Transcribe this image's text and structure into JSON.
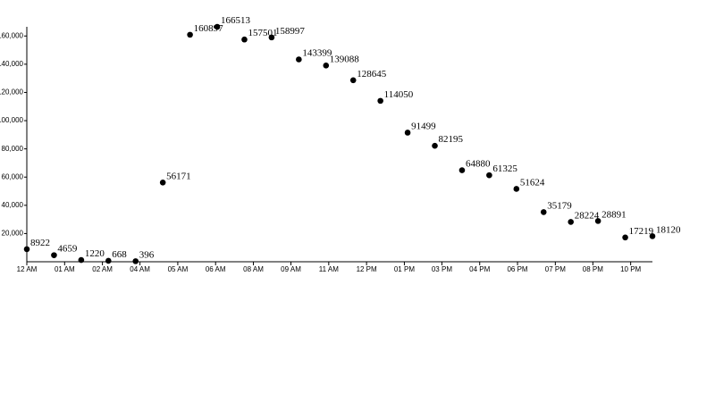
{
  "chart_data": {
    "type": "scatter",
    "x": [
      0,
      1,
      2,
      3,
      4,
      5,
      6,
      7,
      8,
      9,
      10,
      11,
      12,
      13,
      14,
      15,
      16,
      17,
      18,
      19,
      20,
      21,
      22,
      23
    ],
    "values": [
      8922,
      4659,
      1220,
      668,
      396,
      56171,
      160897,
      166513,
      157501,
      158997,
      143399,
      139088,
      128645,
      114050,
      91499,
      82195,
      64880,
      61325,
      51624,
      35179,
      28224,
      28891,
      17219,
      18120
    ],
    "color": "#000000",
    "xlim": [
      0,
      23
    ],
    "xticks": [
      {
        "value": 0,
        "label": "12 AM"
      },
      {
        "value": 1.39,
        "label": "01 AM"
      },
      {
        "value": 2.78,
        "label": "02 AM"
      },
      {
        "value": 4.16,
        "label": "04 AM"
      },
      {
        "value": 5.55,
        "label": "05 AM"
      },
      {
        "value": 6.94,
        "label": "06 AM"
      },
      {
        "value": 8.33,
        "label": "08 AM"
      },
      {
        "value": 9.71,
        "label": "09 AM"
      },
      {
        "value": 11.1,
        "label": "11 AM"
      },
      {
        "value": 12.49,
        "label": "12 PM"
      },
      {
        "value": 13.88,
        "label": "01 PM"
      },
      {
        "value": 15.26,
        "label": "03 PM"
      },
      {
        "value": 16.65,
        "label": "04 PM"
      },
      {
        "value": 18.04,
        "label": "06 PM"
      },
      {
        "value": 19.43,
        "label": "07 PM"
      },
      {
        "value": 20.81,
        "label": "08 PM"
      },
      {
        "value": 22.2,
        "label": "10 PM"
      }
    ],
    "ylim": [
      0,
      166513
    ],
    "yticks": [
      {
        "value": 20000,
        "label": "20,000"
      },
      {
        "value": 40000,
        "label": "40,000"
      },
      {
        "value": 60000,
        "label": "60,000"
      },
      {
        "value": 80000,
        "label": "80,000"
      },
      {
        "value": 100000,
        "label": "100,000"
      },
      {
        "value": 120000,
        "label": "120,000"
      },
      {
        "value": 140000,
        "label": "140,000"
      },
      {
        "value": 160000,
        "label": "160,000"
      }
    ]
  }
}
